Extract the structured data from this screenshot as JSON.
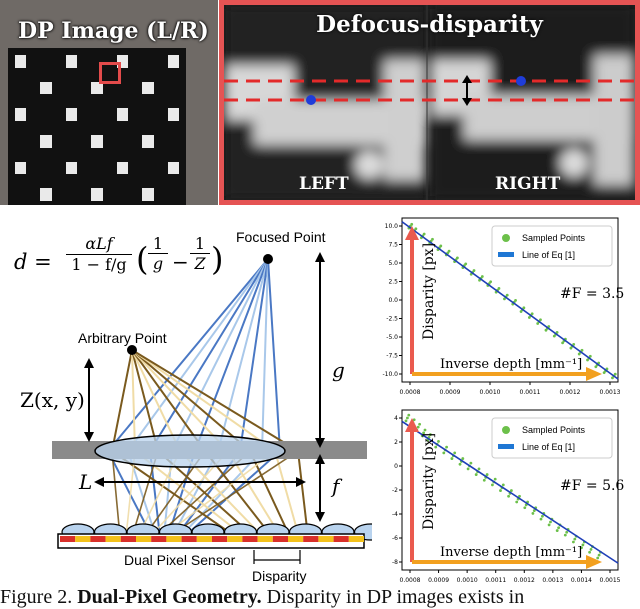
{
  "dp_image": {
    "title": "DP Image (L/R)"
  },
  "defocus_panel": {
    "title": "Defocus-disparity",
    "left_label": "LEFT",
    "right_label": "RIGHT"
  },
  "diagram": {
    "equation_lhs": "d",
    "equation_frac_num": "αLf",
    "equation_frac_den": "1 − f/g",
    "equation_rhs_a": "1",
    "equation_rhs_a_den": "g",
    "equation_rhs_b": "1",
    "equation_rhs_b_den": "Z",
    "focused_point": "Focused Point",
    "arbitrary_point": "Arbitrary Point",
    "z_label": "Z(x, y)",
    "g_label": "g",
    "f_label": "f",
    "l_label": "L",
    "sensor_label": "Dual Pixel Sensor",
    "disparity_label": "Disparity",
    "colors": {
      "blue_rays": "#4a78c4",
      "light_blue_rays": "#a9c8ea",
      "brown_rays": "#7a5a1e",
      "tan_rays": "#f0dca6",
      "sensor_red": "#d9302a",
      "sensor_yellow": "#f4c21b",
      "lens": "#b9d3ee",
      "plate": "#8a8a8a"
    }
  },
  "chart_data": [
    {
      "type": "scatter",
      "legend": [
        "Sampled Points",
        "Line of Eq [1]"
      ],
      "annotation": "#F = 3.5",
      "xlabel": "Inverse depth [mm⁻¹]",
      "ylabel": "Disparity [px]",
      "xticks": [
        "0.0008",
        "0.0009",
        "0.0010",
        "0.0011",
        "0.0012",
        "0.0013"
      ],
      "yticks": [
        "10.0",
        "7.5",
        "5.0",
        "2.5",
        "0.0",
        "-2.5",
        "-5.0",
        "-7.5",
        "-10.0"
      ],
      "xlim": [
        0.00078,
        0.0013
      ],
      "ylim": [
        -11,
        11
      ],
      "line": {
        "x": [
          0.00078,
          0.0013
        ],
        "y": [
          10.5,
          -10.6
        ]
      },
      "points": [
        [
          0.0008,
          9.9
        ],
        [
          0.00081,
          9.3
        ],
        [
          0.00083,
          8.6
        ],
        [
          0.00085,
          7.9
        ],
        [
          0.00087,
          7.0
        ],
        [
          0.00089,
          6.3
        ],
        [
          0.00091,
          5.4
        ],
        [
          0.00093,
          4.6
        ],
        [
          0.00095,
          3.7
        ],
        [
          0.00097,
          2.9
        ],
        [
          0.00099,
          2.2
        ],
        [
          0.00101,
          1.3
        ],
        [
          0.00103,
          0.4
        ],
        [
          0.00105,
          -0.3
        ],
        [
          0.00107,
          -1.3
        ],
        [
          0.00109,
          -2.1
        ],
        [
          0.00111,
          -2.9
        ],
        [
          0.00113,
          -3.8
        ],
        [
          0.00115,
          -4.6
        ],
        [
          0.00117,
          -5.5
        ],
        [
          0.00119,
          -6.2
        ],
        [
          0.00121,
          -7.0
        ],
        [
          0.00123,
          -7.8
        ],
        [
          0.00125,
          -8.7
        ],
        [
          0.00127,
          -9.5
        ],
        [
          0.00129,
          -10.2
        ]
      ],
      "colors": {
        "points": "#6cc04a",
        "line": "#1f3fb8",
        "xarrow": "#f2a01f",
        "yarrow": "#ea5a4e"
      }
    },
    {
      "type": "scatter",
      "legend": [
        "Sampled Points",
        "Line of Eq [1]"
      ],
      "annotation": "#F = 5.6",
      "xlabel": "Inverse depth [mm⁻¹]",
      "ylabel": "Disparity [px]",
      "xticks": [
        "0.0008",
        "0.0009",
        "0.0010",
        "0.0011",
        "0.0012",
        "0.0013",
        "0.0014",
        "0.0015"
      ],
      "yticks": [
        "4",
        "2",
        "0",
        "-2",
        "-4",
        "-6",
        "-8"
      ],
      "xlim": [
        0.00075,
        0.00155
      ],
      "ylim": [
        -9,
        5
      ],
      "line": {
        "x": [
          0.00075,
          0.00155
        ],
        "y": [
          4.0,
          -8.4
        ]
      },
      "points": [
        [
          0.00077,
          4.3
        ],
        [
          0.00079,
          3.9
        ],
        [
          0.00081,
          3.5
        ],
        [
          0.00083,
          3.0
        ],
        [
          0.00085,
          2.6
        ],
        [
          0.00088,
          2.0
        ],
        [
          0.00091,
          1.5
        ],
        [
          0.00094,
          1.0
        ],
        [
          0.00097,
          0.5
        ],
        [
          0.001,
          0.1
        ],
        [
          0.00103,
          -0.4
        ],
        [
          0.00106,
          -0.9
        ],
        [
          0.00109,
          -1.3
        ],
        [
          0.00112,
          -1.8
        ],
        [
          0.00115,
          -2.3
        ],
        [
          0.00118,
          -2.8
        ],
        [
          0.00121,
          -3.3
        ],
        [
          0.00124,
          -3.8
        ],
        [
          0.00127,
          -4.3
        ],
        [
          0.0013,
          -4.8
        ],
        [
          0.00133,
          -5.3
        ],
        [
          0.00136,
          -5.7
        ],
        [
          0.00139,
          -6.3
        ],
        [
          0.00142,
          -6.8
        ],
        [
          0.00145,
          -7.2
        ],
        [
          0.00148,
          -7.7
        ]
      ],
      "colors": {
        "points": "#6cc04a",
        "line": "#1f3fb8",
        "xarrow": "#f2a01f",
        "yarrow": "#ea5a4e"
      }
    }
  ],
  "caption": {
    "prefix": "Figure 2. ",
    "bold": "Dual-Pixel Geometry.",
    "rest": " Disparity in DP images exists in"
  }
}
